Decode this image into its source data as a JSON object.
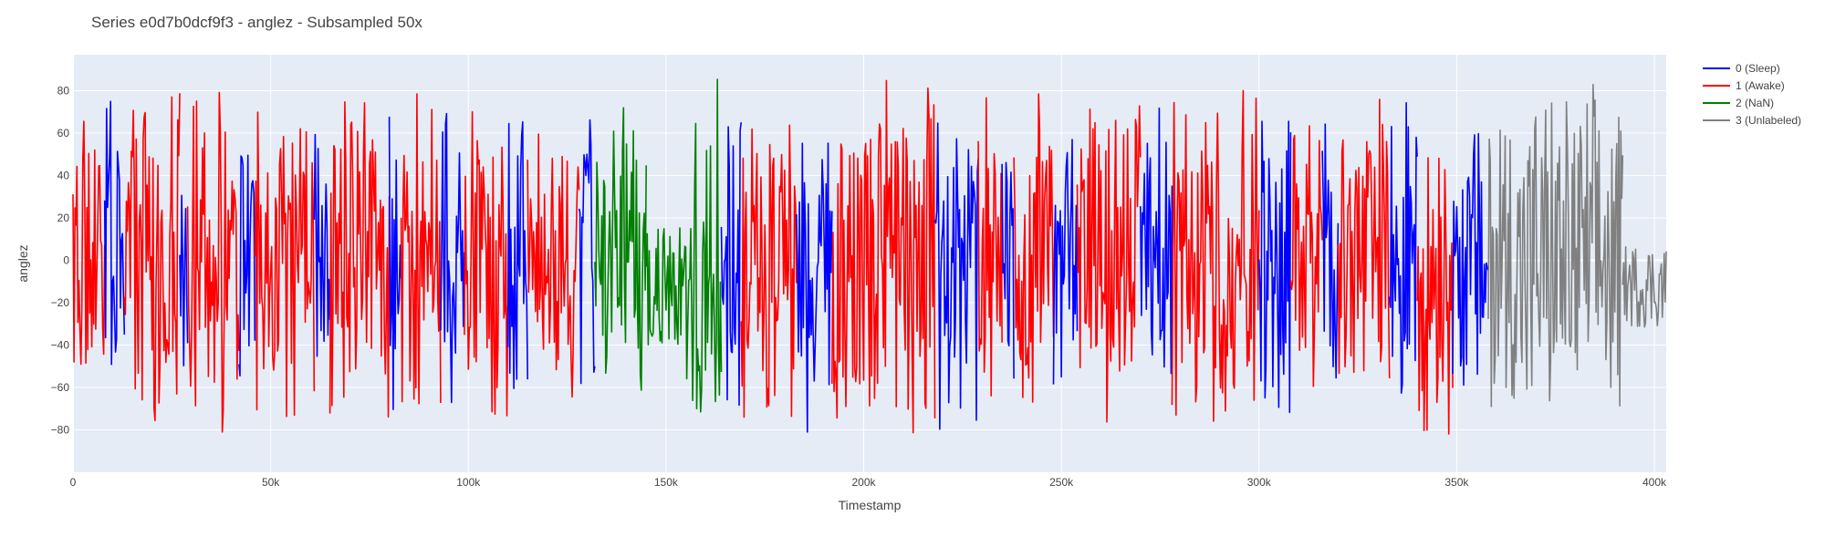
{
  "chart_data": {
    "type": "line",
    "title": "Series e0d7b0dcf9f3 - anglez - Subsampled 50x",
    "xlabel": "Timestamp",
    "ylabel": "anglez",
    "xlim": [
      0,
      403000
    ],
    "ylim": [
      -100,
      97
    ],
    "x_ticks": [
      0,
      50000,
      100000,
      150000,
      200000,
      250000,
      300000,
      350000,
      400000
    ],
    "x_tick_labels": [
      "0",
      "50k",
      "100k",
      "150k",
      "200k",
      "250k",
      "300k",
      "350k",
      "400k"
    ],
    "y_ticks": [
      -80,
      -60,
      -40,
      -20,
      0,
      20,
      40,
      60,
      80
    ],
    "y_tick_labels": [
      "−80",
      "−60",
      "−40",
      "−20",
      "0",
      "20",
      "40",
      "60",
      "80"
    ],
    "grid": true,
    "legend_position": "top-right, outside plot",
    "plot_background": "#e5ecf6",
    "series": [
      {
        "name": "0 (Sleep)",
        "color": "#0000ff"
      },
      {
        "name": "1 (Awake)",
        "color": "#ff0000"
      },
      {
        "name": "2 (NaN)",
        "color": "#008000"
      },
      {
        "name": "3 (Unlabeled)",
        "color": "#808080"
      }
    ],
    "segments": [
      {
        "series": 1,
        "x_start": 0,
        "x_end": 8000,
        "amp": 78
      },
      {
        "series": 0,
        "x_start": 8000,
        "x_end": 13000,
        "amp": 85
      },
      {
        "series": 1,
        "x_start": 13000,
        "x_end": 27000,
        "amp": 88
      },
      {
        "series": 0,
        "x_start": 27000,
        "x_end": 29000,
        "amp": 70
      },
      {
        "series": 1,
        "x_start": 29000,
        "x_end": 42000,
        "amp": 88
      },
      {
        "series": 0,
        "x_start": 42000,
        "x_end": 46000,
        "amp": 70
      },
      {
        "series": 1,
        "x_start": 46000,
        "x_end": 61000,
        "amp": 86
      },
      {
        "series": 0,
        "x_start": 61000,
        "x_end": 65000,
        "amp": 84
      },
      {
        "series": 1,
        "x_start": 65000,
        "x_end": 80000,
        "amp": 88
      },
      {
        "series": 0,
        "x_start": 80000,
        "x_end": 83000,
        "amp": 88
      },
      {
        "series": 1,
        "x_start": 83000,
        "x_end": 93000,
        "amp": 86
      },
      {
        "series": 0,
        "x_start": 93000,
        "x_end": 99000,
        "amp": 86
      },
      {
        "series": 1,
        "x_start": 99000,
        "x_end": 110000,
        "amp": 86
      },
      {
        "series": 0,
        "x_start": 110000,
        "x_end": 115000,
        "amp": 85
      },
      {
        "series": 1,
        "x_start": 115000,
        "x_end": 128000,
        "amp": 82
      },
      {
        "series": 0,
        "x_start": 128000,
        "x_end": 132000,
        "amp": 86
      },
      {
        "series": 2,
        "x_start": 132000,
        "x_end": 145000,
        "amp": 88
      },
      {
        "series": 2,
        "x_start": 145000,
        "x_end": 155000,
        "amp": 28
      },
      {
        "series": 2,
        "x_start": 155000,
        "x_end": 164000,
        "amp": 86
      },
      {
        "series": 0,
        "x_start": 164000,
        "x_end": 169000,
        "amp": 82
      },
      {
        "series": 1,
        "x_start": 169000,
        "x_end": 183000,
        "amp": 86
      },
      {
        "series": 0,
        "x_start": 183000,
        "x_end": 192000,
        "amp": 86
      },
      {
        "series": 1,
        "x_start": 192000,
        "x_end": 218000,
        "amp": 88
      },
      {
        "series": 0,
        "x_start": 218000,
        "x_end": 229000,
        "amp": 82
      },
      {
        "series": 1,
        "x_start": 229000,
        "x_end": 235000,
        "amp": 86
      },
      {
        "series": 0,
        "x_start": 235000,
        "x_end": 238000,
        "amp": 80
      },
      {
        "series": 1,
        "x_start": 238000,
        "x_end": 248000,
        "amp": 86
      },
      {
        "series": 0,
        "x_start": 248000,
        "x_end": 254000,
        "amp": 86
      },
      {
        "series": 1,
        "x_start": 254000,
        "x_end": 270000,
        "amp": 88
      },
      {
        "series": 0,
        "x_start": 270000,
        "x_end": 278000,
        "amp": 85
      },
      {
        "series": 1,
        "x_start": 278000,
        "x_end": 300000,
        "amp": 88
      },
      {
        "series": 0,
        "x_start": 300000,
        "x_end": 308000,
        "amp": 88
      },
      {
        "series": 1,
        "x_start": 308000,
        "x_end": 316000,
        "amp": 88
      },
      {
        "series": 0,
        "x_start": 316000,
        "x_end": 320000,
        "amp": 80
      },
      {
        "series": 1,
        "x_start": 320000,
        "x_end": 333000,
        "amp": 88
      },
      {
        "series": 0,
        "x_start": 333000,
        "x_end": 340000,
        "amp": 86
      },
      {
        "series": 1,
        "x_start": 340000,
        "x_end": 349000,
        "amp": 88
      },
      {
        "series": 0,
        "x_start": 349000,
        "x_end": 358000,
        "amp": 75
      },
      {
        "series": 3,
        "x_start": 358000,
        "x_end": 392000,
        "amp": 88
      },
      {
        "series": 3,
        "x_start": 392000,
        "x_end": 403000,
        "amp": 20
      }
    ]
  }
}
